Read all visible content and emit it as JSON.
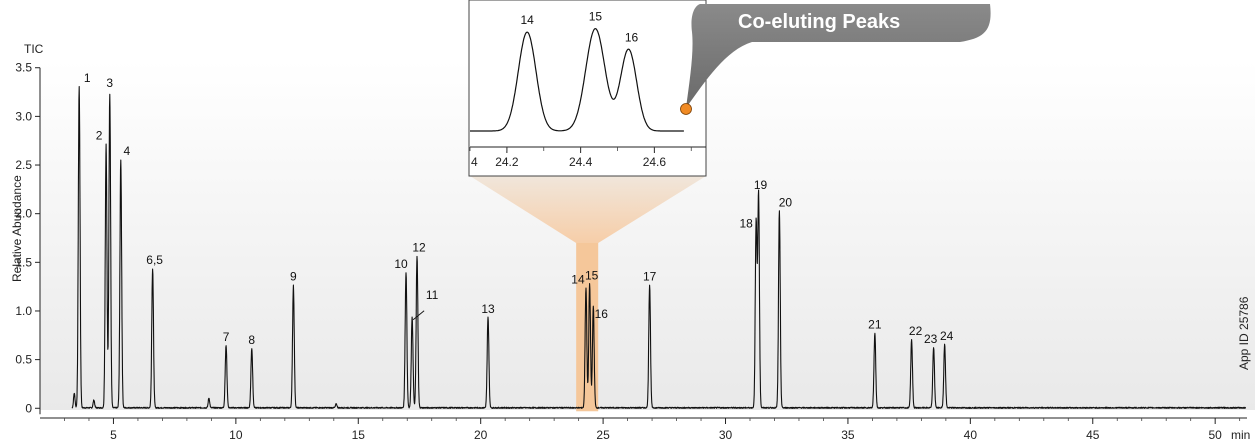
{
  "chart_data": [
    {
      "type": "line",
      "title": "",
      "ylabel": "Relative Abundance",
      "trace_label": "TIC",
      "xunit": "min",
      "xlim": [
        2.0,
        51.3
      ],
      "ylim": [
        -0.1,
        3.6
      ],
      "yticks": [
        0,
        0.5,
        1.0,
        1.5,
        2.0,
        2.5,
        3.0,
        3.5
      ],
      "ytick_labels": [
        "0",
        "0.5",
        "1.0",
        "1.5",
        "2.0",
        "2.5",
        "3.0",
        "3.5"
      ],
      "xticks": [
        5,
        10,
        15,
        20,
        25,
        30,
        35,
        40,
        45,
        50
      ],
      "xtick_labels": [
        "5",
        "10",
        "15",
        "20",
        "25",
        "30",
        "35",
        "40",
        "45",
        "50"
      ],
      "highlight_range": [
        23.9,
        24.8
      ],
      "highlight_color": "#f5c79a",
      "minor_peaks": [
        {
          "x": 3.4,
          "y": 0.15
        },
        {
          "x": 4.2,
          "y": 0.08
        },
        {
          "x": 8.9,
          "y": 0.1
        },
        {
          "x": 14.1,
          "y": 0.04
        }
      ],
      "peaks": [
        {
          "label": "1",
          "x": 3.6,
          "y": 3.3
        },
        {
          "label": "2",
          "x": 4.7,
          "y": 2.71
        },
        {
          "label": "3",
          "x": 4.85,
          "y": 3.22
        },
        {
          "label": "4",
          "x": 5.3,
          "y": 2.55
        },
        {
          "label": "6,5",
          "x": 6.6,
          "y": 1.43
        },
        {
          "label": "7",
          "x": 9.6,
          "y": 0.64
        },
        {
          "label": "8",
          "x": 10.65,
          "y": 0.61
        },
        {
          "label": "9",
          "x": 12.35,
          "y": 1.26
        },
        {
          "label": "10",
          "x": 16.95,
          "y": 1.39
        },
        {
          "label": "11",
          "x": 17.2,
          "y": 0.93
        },
        {
          "label": "12",
          "x": 17.4,
          "y": 1.56
        },
        {
          "label": "13",
          "x": 20.3,
          "y": 0.93
        },
        {
          "label": "14",
          "x": 24.3,
          "y": 1.23
        },
        {
          "label": "15",
          "x": 24.45,
          "y": 1.27
        },
        {
          "label": "16",
          "x": 24.6,
          "y": 1.04
        },
        {
          "label": "17",
          "x": 26.9,
          "y": 1.26
        },
        {
          "label": "18",
          "x": 31.25,
          "y": 1.91
        },
        {
          "label": "19",
          "x": 31.35,
          "y": 2.2
        },
        {
          "label": "20",
          "x": 32.2,
          "y": 2.02
        },
        {
          "label": "21",
          "x": 36.1,
          "y": 0.77
        },
        {
          "label": "22",
          "x": 37.6,
          "y": 0.7
        },
        {
          "label": "23",
          "x": 38.5,
          "y": 0.62
        },
        {
          "label": "24",
          "x": 38.95,
          "y": 0.65
        }
      ]
    },
    {
      "type": "line",
      "title": "",
      "xlim": [
        24.1,
        24.74
      ],
      "ylim": [
        0,
        1.0
      ],
      "xticks": [
        24.2,
        24.4,
        24.6
      ],
      "xtick_labels": [
        "24.2",
        "24.4",
        "24.6"
      ],
      "edge_tick_label": "4",
      "peaks": [
        {
          "label": "14",
          "x": 24.255,
          "y": 0.86
        },
        {
          "label": "15",
          "x": 24.44,
          "y": 0.89
        },
        {
          "label": "16",
          "x": 24.53,
          "y": 0.71
        }
      ]
    }
  ],
  "callout": {
    "text": "Co-eluting Peaks",
    "fill": "#7b7b7b",
    "dot_color": "#f08a24"
  },
  "watermark": "App ID 25786"
}
